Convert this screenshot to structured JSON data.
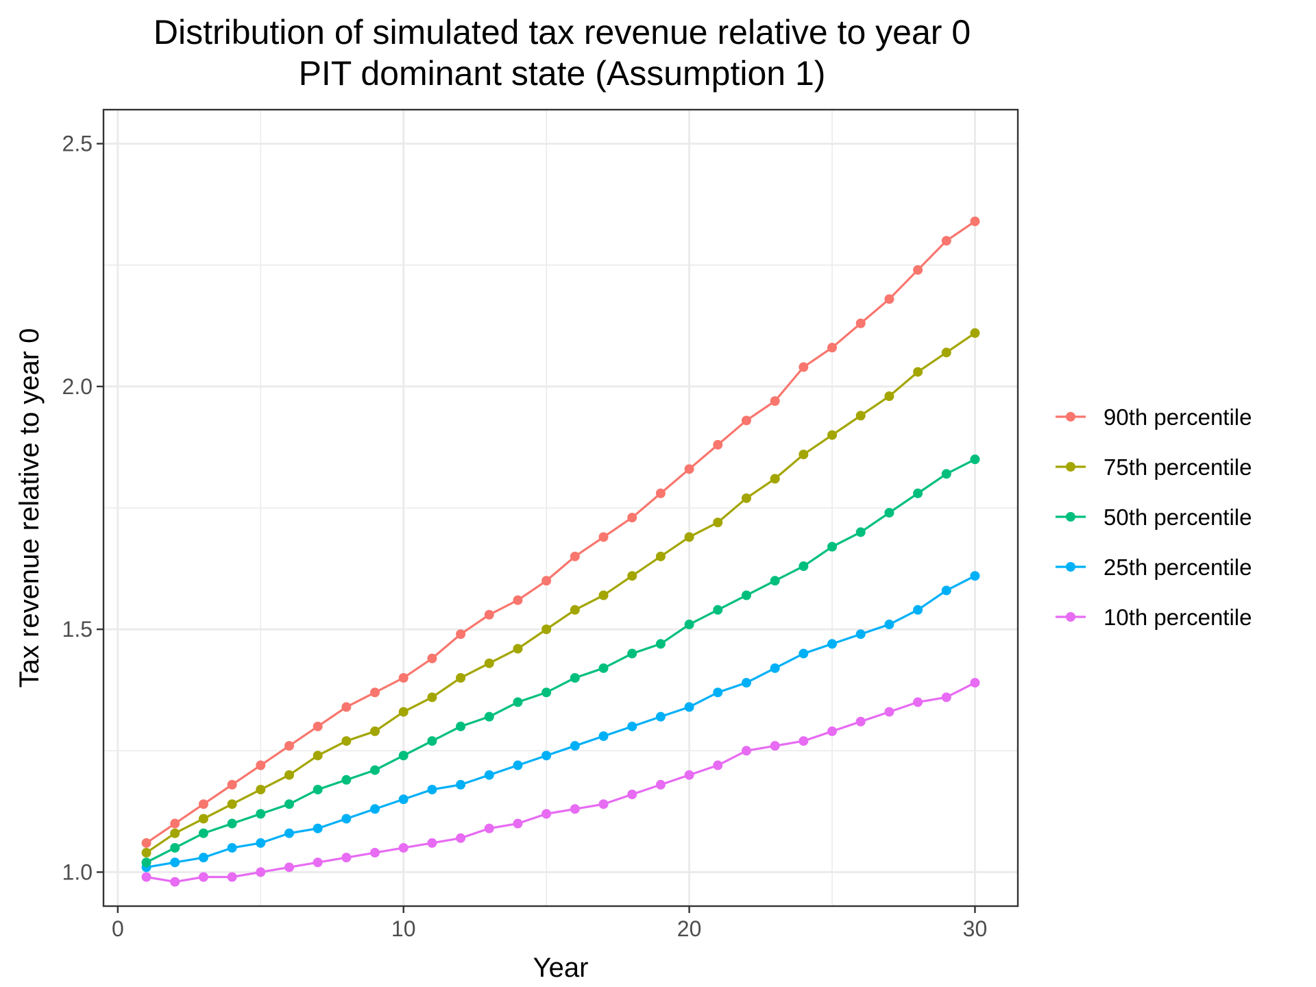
{
  "chart_data": {
    "type": "line",
    "title": "Distribution of simulated tax revenue relative to year 0",
    "subtitle": "PIT dominant state (Assumption 1)",
    "xlabel": "Year",
    "ylabel": "Tax revenue relative to year 0",
    "xlim": [
      -0.5,
      31.5
    ],
    "ylim": [
      0.93,
      2.57
    ],
    "x_ticks": [
      0,
      10,
      20,
      30
    ],
    "x_tick_labels": [
      "0",
      "10",
      "20",
      "30"
    ],
    "y_ticks": [
      1.0,
      1.5,
      2.0,
      2.5
    ],
    "y_tick_labels": [
      "1.0",
      "1.5",
      "2.0",
      "2.5"
    ],
    "x_minor_ticks": [
      5,
      15,
      25
    ],
    "y_minor_ticks": [
      1.25,
      1.75,
      2.25
    ],
    "grid": true,
    "legend_position": "right",
    "x": [
      1,
      2,
      3,
      4,
      5,
      6,
      7,
      8,
      9,
      10,
      11,
      12,
      13,
      14,
      15,
      16,
      17,
      18,
      19,
      20,
      21,
      22,
      23,
      24,
      25,
      26,
      27,
      28,
      29,
      30
    ],
    "series": [
      {
        "name": "90th percentile",
        "color": "#F8766D",
        "values": [
          1.06,
          1.1,
          1.14,
          1.18,
          1.22,
          1.26,
          1.3,
          1.34,
          1.37,
          1.4,
          1.44,
          1.49,
          1.53,
          1.56,
          1.6,
          1.65,
          1.69,
          1.73,
          1.78,
          1.83,
          1.88,
          1.93,
          1.97,
          2.04,
          2.08,
          2.13,
          2.18,
          2.24,
          2.3,
          2.34
        ]
      },
      {
        "name": "75th percentile",
        "color": "#A3A500",
        "values": [
          1.04,
          1.08,
          1.11,
          1.14,
          1.17,
          1.2,
          1.24,
          1.27,
          1.29,
          1.33,
          1.36,
          1.4,
          1.43,
          1.46,
          1.5,
          1.54,
          1.57,
          1.61,
          1.65,
          1.69,
          1.72,
          1.77,
          1.81,
          1.86,
          1.9,
          1.94,
          1.98,
          2.03,
          2.07,
          2.11
        ]
      },
      {
        "name": "50th percentile",
        "color": "#00BF7D",
        "values": [
          1.02,
          1.05,
          1.08,
          1.1,
          1.12,
          1.14,
          1.17,
          1.19,
          1.21,
          1.24,
          1.27,
          1.3,
          1.32,
          1.35,
          1.37,
          1.4,
          1.42,
          1.45,
          1.47,
          1.51,
          1.54,
          1.57,
          1.6,
          1.63,
          1.67,
          1.7,
          1.74,
          1.78,
          1.82,
          1.85
        ]
      },
      {
        "name": "25th percentile",
        "color": "#00B0F6",
        "values": [
          1.01,
          1.02,
          1.03,
          1.05,
          1.06,
          1.08,
          1.09,
          1.11,
          1.13,
          1.15,
          1.17,
          1.18,
          1.2,
          1.22,
          1.24,
          1.26,
          1.28,
          1.3,
          1.32,
          1.34,
          1.37,
          1.39,
          1.42,
          1.45,
          1.47,
          1.49,
          1.51,
          1.54,
          1.58,
          1.61
        ]
      },
      {
        "name": "10th percentile",
        "color": "#E76BF3",
        "values": [
          0.99,
          0.98,
          0.99,
          0.99,
          1.0,
          1.01,
          1.02,
          1.03,
          1.04,
          1.05,
          1.06,
          1.07,
          1.09,
          1.1,
          1.12,
          1.13,
          1.14,
          1.16,
          1.18,
          1.2,
          1.22,
          1.25,
          1.26,
          1.27,
          1.29,
          1.31,
          1.33,
          1.35,
          1.36,
          1.39
        ]
      }
    ]
  }
}
